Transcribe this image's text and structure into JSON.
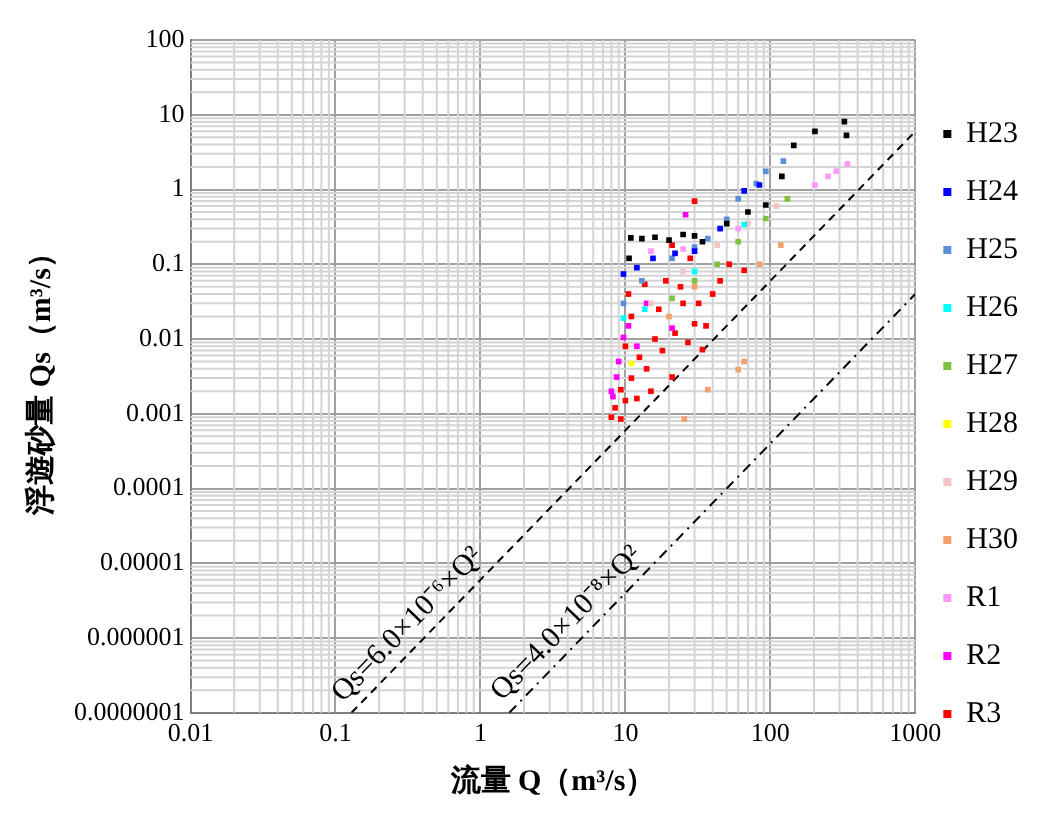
{
  "chart_data": {
    "type": "scatter",
    "xlabel": "流量 Q（m³/s）",
    "ylabel": "浮遊砂量 Qs（m³/s）",
    "log": "xy",
    "grid": true,
    "legend": "right",
    "marker": "square",
    "xlim": [
      0.01,
      1000
    ],
    "xticks": [
      0.01,
      0.1,
      1,
      10,
      100,
      1000
    ],
    "ylim": [
      1e-07,
      100
    ],
    "yticks": [
      {
        "value": 1e-07,
        "label": "0.0000001"
      },
      {
        "value": 1e-06,
        "label": "0.000001"
      },
      {
        "value": 1e-05,
        "label": "0.00001"
      },
      0.0001,
      0.001,
      0.01,
      0.1,
      1,
      10,
      100
    ],
    "annotations": [
      {
        "text": "Qs=6.0×10⁻⁶×Q²",
        "x": 0.4,
        "y": 9.6e-07
      },
      {
        "text": "Qs=4.0×10⁻⁸×Q²",
        "x": 5,
        "y": 1e-06
      }
    ],
    "series": [
      {
        "name": "H23",
        "color": "#000000",
        "x": [
          10.6,
          10.9,
          13,
          16,
          20,
          25,
          30,
          34,
          50,
          70,
          93,
          120,
          145,
          203,
          324,
          335
        ],
        "values": [
          0.12,
          0.225,
          0.22,
          0.23,
          0.21,
          0.25,
          0.24,
          0.2,
          0.35,
          0.5,
          0.62,
          1.5,
          3.9,
          6,
          8.1,
          5.3
        ]
      },
      {
        "name": "H24",
        "color": "#0000ff",
        "x": [
          9.7,
          12,
          15.5,
          22,
          30,
          45,
          66,
          84
        ],
        "values": [
          0.074,
          0.09,
          0.12,
          0.14,
          0.15,
          0.3,
          0.96,
          1.15
        ]
      },
      {
        "name": "H25",
        "color": "#5b8fd6",
        "x": [
          9.7,
          13,
          21,
          30,
          37,
          50,
          60,
          80,
          93,
          123
        ],
        "values": [
          0.03,
          0.06,
          0.12,
          0.17,
          0.22,
          0.4,
          0.75,
          1.2,
          1.75,
          2.4
        ]
      },
      {
        "name": "H26",
        "color": "#00ffff",
        "x": [
          9.7,
          13.6,
          30,
          66
        ],
        "values": [
          0.019,
          0.025,
          0.08,
          0.34
        ]
      },
      {
        "name": "H27",
        "color": "#7fc241",
        "x": [
          21,
          30,
          43,
          60,
          93,
          131
        ],
        "values": [
          0.035,
          0.06,
          0.1,
          0.2,
          0.41,
          0.75
        ]
      },
      {
        "name": "H28",
        "color": "#ffff00",
        "x": [
          11
        ],
        "values": [
          0.0047
        ]
      },
      {
        "name": "H29",
        "color": "#f7c4c4",
        "x": [
          15,
          25,
          43,
          70,
          110
        ],
        "values": [
          0.03,
          0.08,
          0.18,
          0.35,
          0.6
        ]
      },
      {
        "name": "H30",
        "color": "#f4a070",
        "x": [
          25.5,
          37,
          60,
          66,
          84,
          118,
          20,
          30
        ],
        "values": [
          0.00085,
          0.0021,
          0.0039,
          0.005,
          0.1,
          0.18,
          0.02,
          0.05
        ]
      },
      {
        "name": "R1",
        "color": "#ff99ff",
        "x": [
          15,
          25,
          60,
          203,
          250,
          285,
          340
        ],
        "values": [
          0.15,
          0.16,
          0.3,
          1.15,
          1.5,
          1.76,
          2.2
        ]
      },
      {
        "name": "R2",
        "color": "#ff00ff",
        "x": [
          8.2,
          8.7,
          9.7,
          12,
          21,
          26,
          8,
          9,
          10.5,
          14
        ],
        "values": [
          0.0017,
          0.0031,
          0.0105,
          0.008,
          0.014,
          0.46,
          0.002,
          0.005,
          0.015,
          0.03
        ]
      },
      {
        "name": "R3",
        "color": "#ff0000",
        "x": [
          9.3,
          9.3,
          12.5,
          13.6,
          21,
          21,
          30,
          30,
          34,
          52,
          66,
          16,
          25,
          40,
          8,
          8.5,
          10,
          11,
          11,
          12,
          14,
          15,
          17,
          18,
          19,
          22,
          24,
          27,
          28,
          32,
          36,
          45,
          10,
          10.5
        ],
        "values": [
          0.00085,
          0.0021,
          0.0057,
          0.054,
          0.18,
          0.0031,
          0.7,
          0.016,
          0.0072,
          0.1,
          0.083,
          0.01,
          0.03,
          0.04,
          0.0009,
          0.0012,
          0.0015,
          0.003,
          0.02,
          0.0016,
          0.004,
          0.002,
          0.025,
          0.007,
          0.06,
          0.012,
          0.05,
          0.009,
          0.12,
          0.03,
          0.015,
          0.06,
          0.008,
          0.04
        ]
      },
      {
        "type": "line",
        "color": "#000000",
        "line_style": "dashed",
        "marker": "none",
        "x": [
          0.129,
          1000
        ],
        "values": [
          1e-07,
          6
        ]
      },
      {
        "type": "line",
        "color": "#000000",
        "line_style": "dotted",
        "marker": "none",
        "x": [
          1.58,
          1000
        ],
        "values": [
          1e-07,
          0.04
        ]
      }
    ]
  }
}
